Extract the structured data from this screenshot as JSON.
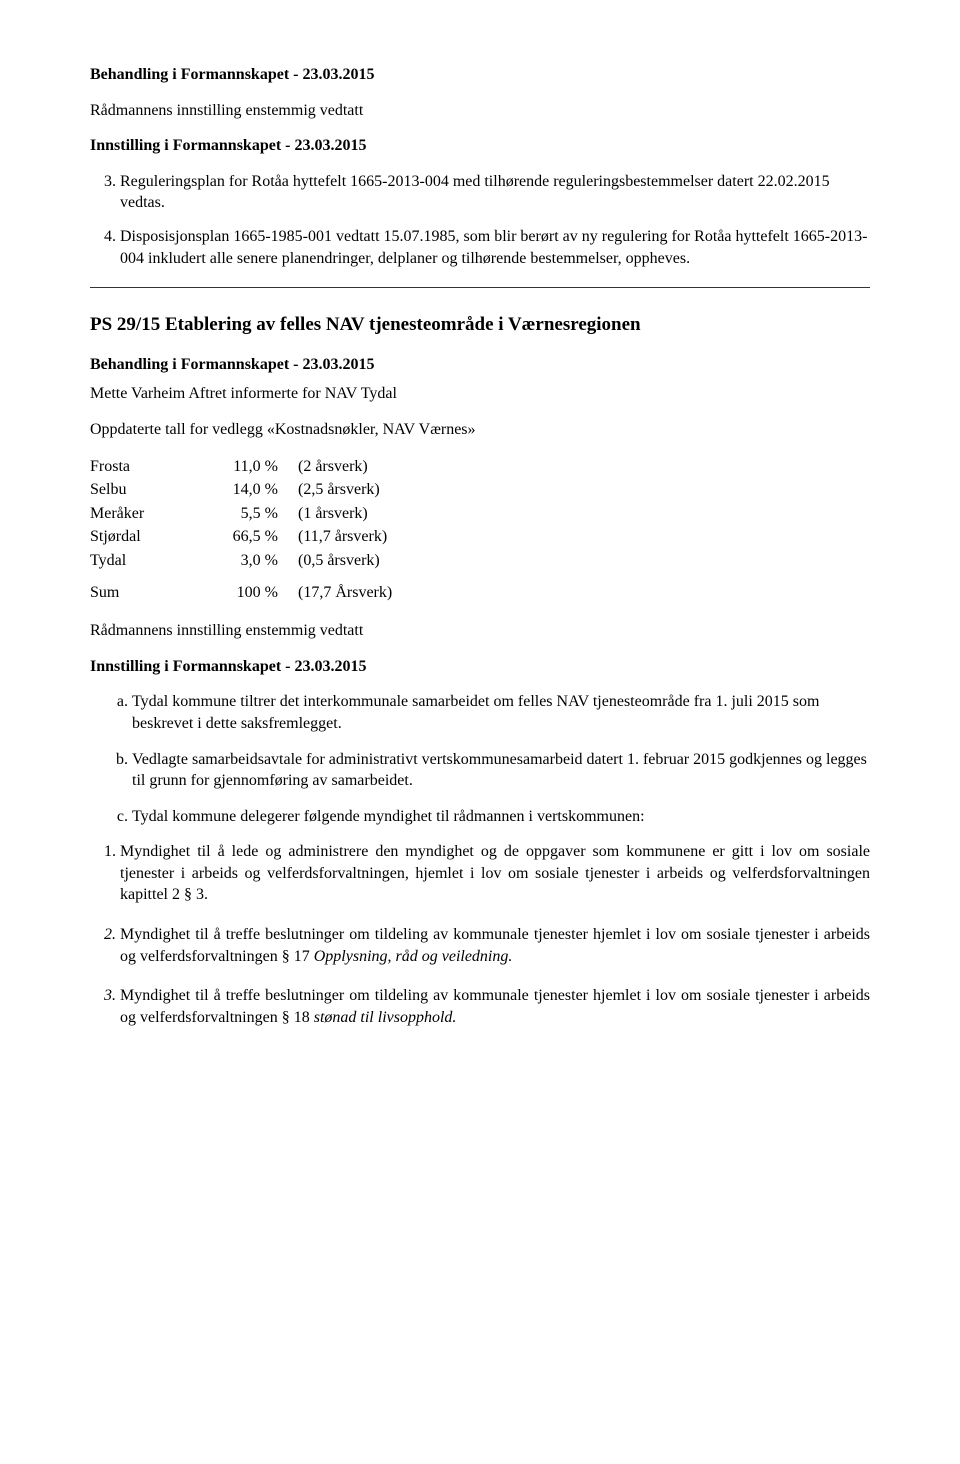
{
  "top": {
    "heading": "Behandling i Formannskapet - 23.03.2015",
    "sub": "Rådmannens innstilling enstemmig vedtatt",
    "resolution_heading": "Innstilling  i Formannskapet - 23.03.2015",
    "item3": "Reguleringsplan for Rotåa hyttefelt 1665-2013-004 med tilhørende reguleringsbestemmelser datert 22.02.2015 vedtas.",
    "item4": "Disposisjonsplan 1665-1985-001 vedtatt 15.07.1985, som blir berørt av ny regulering for Rotåa hyttefelt 1665-2013-004 inkludert alle senere planendringer, delplaner og tilhørende bestemmelser, oppheves."
  },
  "nav_section": {
    "title": "PS 29/15 Etablering av felles NAV tjenesteområde i Værnesregionen",
    "behandling": "Behandling i Formannskapet - 23.03.2015",
    "intro": "Mette Varheim Aftret informerte for NAV Tydal",
    "subhead": "Oppdaterte tall for vedlegg «Kostnadsnøkler, NAV Værnes»",
    "table_rows": [
      {
        "label": "Frosta",
        "pct": "11,0 %",
        "desc": "(2 årsverk)"
      },
      {
        "label": "Selbu",
        "pct": "14,0 %",
        "desc": "(2,5 årsverk)"
      },
      {
        "label": "Meråker",
        "pct": "5,5 %",
        "desc": "(1 årsverk)"
      },
      {
        "label": "Stjørdal",
        "pct": "66,5 %",
        "desc": "(11,7 årsverk)"
      },
      {
        "label": "Tydal",
        "pct": "3,0 %",
        "desc": "(0,5 årsverk)"
      }
    ],
    "table_sum": {
      "label": "Sum",
      "pct": "100 %",
      "desc": "(17,7 Årsverk)"
    },
    "adopted": "Rådmannens innstilling enstemmig vedtatt",
    "resolution_heading": "Innstilling  i Formannskapet - 23.03.2015",
    "alpha_items": [
      "Tydal kommune tiltrer det interkommunale samarbeidet om felles NAV tjenesteområde fra 1. juli 2015 som beskrevet i dette saksfremlegget.",
      "Vedlagte samarbeidsavtale for administrativt vertskommunesamarbeid datert 1. februar 2015 godkjennes og legges til grunn for gjennomføring av samarbeidet.",
      "Tydal kommune delegerer følgende myndighet til rådmannen i vertskommunen:"
    ],
    "num_items": {
      "i1": "Myndighet til å lede og administrere den myndighet og de oppgaver som kommunene er gitt i lov om sosiale tjenester i arbeids og velferdsforvaltningen, hjemlet i lov om sosiale tjenester i arbeids og velferdsforvaltningen kapittel 2 § 3.",
      "i2_pre": "Myndighet til å treffe beslutninger om tildeling av kommunale tjenester hjemlet i lov om sosiale tjenester i arbeids og velferdsforvaltningen § 17 ",
      "i2_em": "Opplysning, råd og veiledning.",
      "i3_pre": "Myndighet til å treffe beslutninger om tildeling av kommunale tjenester hjemlet i lov om sosiale tjenester i arbeids og velferdsforvaltningen § 18 ",
      "i3_em": "stønad til livsopphold."
    }
  }
}
